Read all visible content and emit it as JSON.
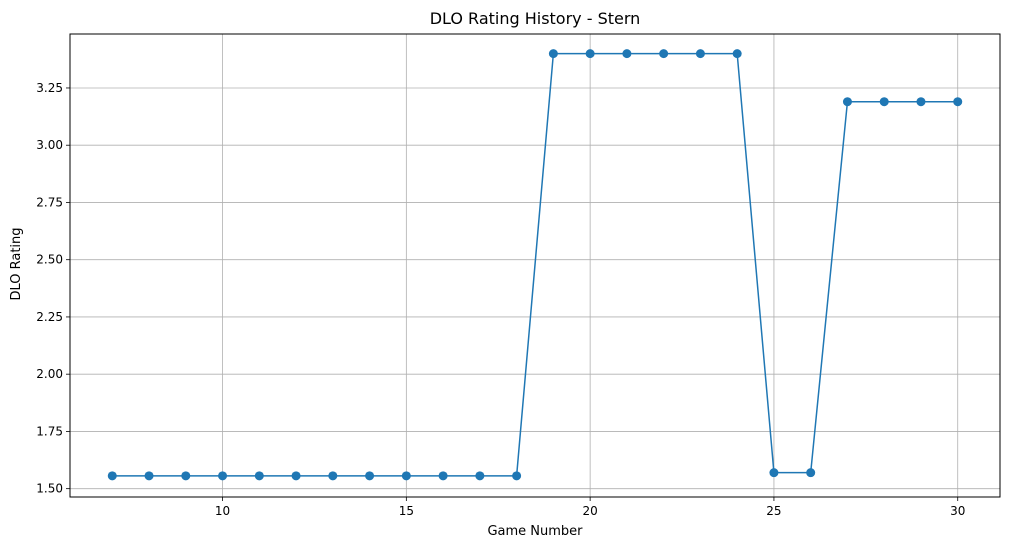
{
  "chart_data": {
    "type": "line",
    "title": "DLO Rating History - Stern",
    "xlabel": "Game Number",
    "ylabel": "DLO Rating",
    "xlim": [
      5.85,
      31.15
    ],
    "ylim": [
      1.4636,
      3.4857
    ],
    "xticks": [
      10,
      15,
      20,
      25,
      30
    ],
    "xtick_labels": [
      "10",
      "15",
      "20",
      "25",
      "30"
    ],
    "yticks": [
      1.5,
      1.75,
      2.0,
      2.25,
      2.5,
      2.75,
      3.0,
      3.25
    ],
    "ytick_labels": [
      "1.50",
      "1.75",
      "2.00",
      "2.25",
      "2.50",
      "2.75",
      "3.00",
      "3.25"
    ],
    "grid": true,
    "marker": "circle",
    "series": [
      {
        "color": "#1f77b4",
        "x": [
          7,
          8,
          9,
          10,
          11,
          12,
          13,
          14,
          15,
          16,
          17,
          18,
          19,
          20,
          21,
          22,
          23,
          24,
          25,
          26,
          27,
          28,
          29,
          30
        ],
        "y": [
          1.556,
          1.556,
          1.556,
          1.556,
          1.556,
          1.556,
          1.556,
          1.556,
          1.556,
          1.556,
          1.556,
          1.556,
          3.4,
          3.4,
          3.4,
          3.4,
          3.4,
          3.4,
          1.57,
          1.57,
          3.19,
          3.19,
          3.19,
          3.19
        ]
      }
    ]
  }
}
